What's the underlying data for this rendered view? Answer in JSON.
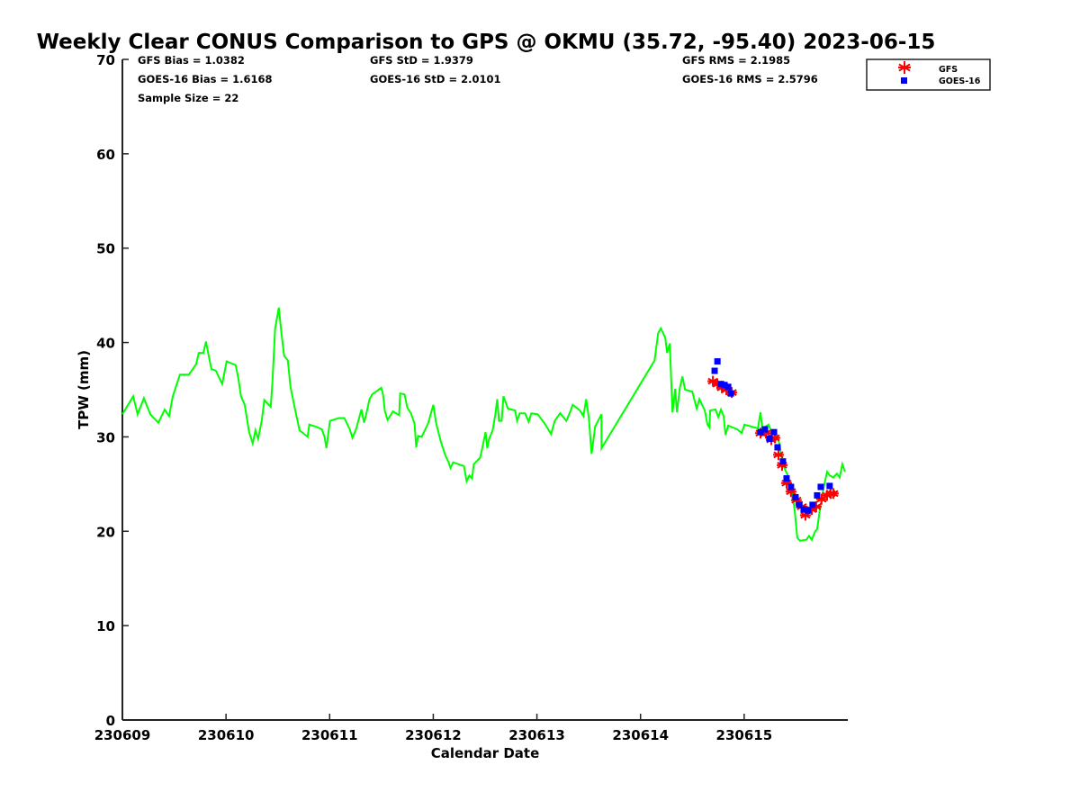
{
  "chart_data": {
    "type": "line",
    "title": "Weekly Clear CONUS Comparison to GPS @ OKMU (35.72, -95.40) 2023-06-15",
    "xlabel": "Calendar Date",
    "ylabel": "TPW (mm)",
    "xlim": [
      0,
      7
    ],
    "ylim": [
      0,
      70
    ],
    "x_unit": "days since 230609",
    "xticks": [
      0,
      1,
      2,
      3,
      4,
      5,
      6
    ],
    "xtick_labels": [
      "230609",
      "230610",
      "230611",
      "230612",
      "230613",
      "230614",
      "230615"
    ],
    "yticks": [
      0,
      10,
      20,
      30,
      40,
      50,
      60,
      70
    ],
    "ytick_labels": [
      "0",
      "10",
      "20",
      "30",
      "40",
      "50",
      "60",
      "70"
    ],
    "grid": false,
    "legend_position": "top-right",
    "stats": [
      "GFS Bias = 1.0382",
      "GFS StD = 1.9379",
      "GFS RMS = 2.1985",
      "GOES-16 Bias = 1.6168",
      "GOES-16 StD = 2.0101",
      "GOES-16 RMS = 2.5796",
      "Sample Size = 22"
    ],
    "series": [
      {
        "name": "GPS",
        "color": "#00ff00",
        "style": "line",
        "points": [
          [
            0.0,
            32.4
          ],
          [
            0.104,
            34.3
          ],
          [
            0.147,
            32.4
          ],
          [
            0.208,
            34.1
          ],
          [
            0.269,
            32.4
          ],
          [
            0.347,
            31.5
          ],
          [
            0.408,
            32.9
          ],
          [
            0.451,
            32.2
          ],
          [
            0.486,
            34.3
          ],
          [
            0.555,
            36.6
          ],
          [
            0.642,
            36.6
          ],
          [
            0.711,
            37.7
          ],
          [
            0.737,
            38.9
          ],
          [
            0.781,
            38.9
          ],
          [
            0.807,
            40.1
          ],
          [
            0.833,
            38.6
          ],
          [
            0.859,
            37.2
          ],
          [
            0.902,
            37.0
          ],
          [
            0.963,
            35.6
          ],
          [
            1.006,
            38.0
          ],
          [
            1.093,
            37.6
          ],
          [
            1.119,
            36.2
          ],
          [
            1.145,
            34.3
          ],
          [
            1.18,
            33.4
          ],
          [
            1.223,
            30.5
          ],
          [
            1.258,
            29.3
          ],
          [
            1.284,
            30.7
          ],
          [
            1.31,
            29.8
          ],
          [
            1.344,
            31.7
          ],
          [
            1.37,
            33.9
          ],
          [
            1.431,
            33.2
          ],
          [
            1.448,
            35.8
          ],
          [
            1.474,
            41.5
          ],
          [
            1.509,
            43.7
          ],
          [
            1.535,
            41.0
          ],
          [
            1.561,
            38.6
          ],
          [
            1.596,
            38.1
          ],
          [
            1.622,
            35.3
          ],
          [
            1.657,
            33.4
          ],
          [
            1.709,
            30.7
          ],
          [
            1.787,
            30.0
          ],
          [
            1.804,
            31.3
          ],
          [
            1.865,
            31.1
          ],
          [
            1.925,
            30.8
          ],
          [
            1.951,
            30.0
          ],
          [
            1.969,
            28.8
          ],
          [
            2.003,
            31.7
          ],
          [
            2.09,
            32.0
          ],
          [
            2.142,
            32.0
          ],
          [
            2.194,
            30.8
          ],
          [
            2.22,
            29.9
          ],
          [
            2.255,
            30.8
          ],
          [
            2.307,
            32.9
          ],
          [
            2.333,
            31.5
          ],
          [
            2.359,
            32.7
          ],
          [
            2.385,
            34.0
          ],
          [
            2.411,
            34.5
          ],
          [
            2.498,
            35.2
          ],
          [
            2.515,
            34.5
          ],
          [
            2.533,
            32.7
          ],
          [
            2.559,
            31.8
          ],
          [
            2.611,
            32.7
          ],
          [
            2.671,
            32.3
          ],
          [
            2.68,
            34.6
          ],
          [
            2.723,
            34.5
          ],
          [
            2.749,
            33.1
          ],
          [
            2.784,
            32.5
          ],
          [
            2.819,
            31.4
          ],
          [
            2.836,
            28.9
          ],
          [
            2.853,
            30.1
          ],
          [
            2.888,
            30.0
          ],
          [
            2.949,
            31.4
          ],
          [
            3.001,
            33.4
          ],
          [
            3.027,
            31.5
          ],
          [
            3.07,
            29.6
          ],
          [
            3.114,
            28.1
          ],
          [
            3.148,
            27.3
          ],
          [
            3.166,
            26.7
          ],
          [
            3.192,
            27.3
          ],
          [
            3.296,
            26.9
          ],
          [
            3.322,
            25.3
          ],
          [
            3.348,
            25.9
          ],
          [
            3.374,
            25.6
          ],
          [
            3.391,
            27.1
          ],
          [
            3.452,
            27.8
          ],
          [
            3.478,
            29.1
          ],
          [
            3.504,
            30.5
          ],
          [
            3.521,
            28.8
          ],
          [
            3.539,
            29.8
          ],
          [
            3.573,
            30.7
          ],
          [
            3.599,
            32.4
          ],
          [
            3.617,
            34.0
          ],
          [
            3.634,
            31.7
          ],
          [
            3.66,
            31.7
          ],
          [
            3.677,
            34.3
          ],
          [
            3.721,
            33.0
          ],
          [
            3.79,
            32.8
          ],
          [
            3.808,
            31.7
          ],
          [
            3.834,
            32.5
          ],
          [
            3.886,
            32.5
          ],
          [
            3.92,
            31.6
          ],
          [
            3.946,
            32.5
          ],
          [
            4.007,
            32.4
          ],
          [
            4.076,
            31.4
          ],
          [
            4.137,
            30.3
          ],
          [
            4.172,
            31.7
          ],
          [
            4.224,
            32.5
          ],
          [
            4.284,
            31.7
          ],
          [
            4.319,
            32.6
          ],
          [
            4.345,
            33.4
          ],
          [
            4.415,
            32.8
          ],
          [
            4.449,
            32.2
          ],
          [
            4.475,
            34.0
          ],
          [
            4.501,
            32.0
          ],
          [
            4.527,
            28.2
          ],
          [
            4.545,
            29.6
          ],
          [
            4.562,
            31.1
          ],
          [
            4.623,
            32.4
          ],
          [
            4.624,
            28.8
          ],
          [
            5.135,
            38.1
          ],
          [
            5.17,
            41.0
          ],
          [
            5.196,
            41.5
          ],
          [
            5.239,
            40.5
          ],
          [
            5.256,
            38.9
          ],
          [
            5.282,
            39.9
          ],
          [
            5.308,
            32.6
          ],
          [
            5.334,
            35.1
          ],
          [
            5.352,
            32.6
          ],
          [
            5.378,
            35.1
          ],
          [
            5.404,
            36.4
          ],
          [
            5.43,
            35.0
          ],
          [
            5.499,
            34.8
          ],
          [
            5.542,
            33.0
          ],
          [
            5.568,
            34.0
          ],
          [
            5.62,
            32.8
          ],
          [
            5.646,
            31.3
          ],
          [
            5.664,
            31.0
          ],
          [
            5.672,
            32.8
          ],
          [
            5.724,
            32.9
          ],
          [
            5.75,
            32.1
          ],
          [
            5.776,
            32.9
          ],
          [
            5.802,
            32.2
          ],
          [
            5.82,
            30.2
          ],
          [
            5.846,
            31.2
          ],
          [
            5.932,
            30.8
          ],
          [
            5.976,
            30.4
          ],
          [
            6.002,
            31.3
          ],
          [
            6.132,
            30.9
          ],
          [
            6.158,
            32.6
          ],
          [
            6.175,
            30.9
          ],
          [
            6.236,
            31.3
          ],
          [
            6.271,
            30.3
          ],
          [
            6.305,
            30.5
          ],
          [
            6.34,
            29.3
          ],
          [
            6.357,
            28.1
          ],
          [
            6.383,
            26.8
          ],
          [
            6.418,
            26.0
          ],
          [
            6.453,
            24.8
          ],
          [
            6.487,
            22.3
          ],
          [
            6.513,
            19.3
          ],
          [
            6.539,
            19.0
          ],
          [
            6.6,
            19.1
          ],
          [
            6.626,
            19.5
          ],
          [
            6.652,
            19.1
          ],
          [
            6.686,
            20.0
          ],
          [
            6.704,
            20.2
          ],
          [
            6.739,
            22.9
          ],
          [
            6.765,
            24.5
          ],
          [
            6.8,
            26.3
          ],
          [
            6.826,
            25.9
          ],
          [
            6.86,
            25.7
          ],
          [
            6.895,
            26.1
          ],
          [
            6.921,
            25.7
          ],
          [
            6.947,
            27.1
          ],
          [
            6.973,
            26.3
          ]
        ]
      },
      {
        "name": "GFS",
        "color": "#ff0000",
        "style": "asterisk",
        "points": [
          [
            5.698,
            35.9
          ],
          [
            5.742,
            35.6
          ],
          [
            5.785,
            35.2
          ],
          [
            5.828,
            35.0
          ],
          [
            5.88,
            34.7
          ],
          [
            6.158,
            30.4
          ],
          [
            6.21,
            30.4
          ],
          [
            6.262,
            29.7
          ],
          [
            6.296,
            29.9
          ],
          [
            6.331,
            28.1
          ],
          [
            6.366,
            27.0
          ],
          [
            6.409,
            25.1
          ],
          [
            6.452,
            24.2
          ],
          [
            6.504,
            23.3
          ],
          [
            6.556,
            22.6
          ],
          [
            6.591,
            21.7
          ],
          [
            6.652,
            22.3
          ],
          [
            6.695,
            22.6
          ],
          [
            6.747,
            23.4
          ],
          [
            6.8,
            23.8
          ],
          [
            6.834,
            24.0
          ],
          [
            6.86,
            24.0
          ]
        ]
      },
      {
        "name": "GOES-16",
        "color": "#0000ff",
        "style": "square",
        "points": [
          [
            5.715,
            37.0
          ],
          [
            5.742,
            38.0
          ],
          [
            5.777,
            35.6
          ],
          [
            5.811,
            35.5
          ],
          [
            5.846,
            35.3
          ],
          [
            5.872,
            34.6
          ],
          [
            6.158,
            30.5
          ],
          [
            6.201,
            30.8
          ],
          [
            6.245,
            29.8
          ],
          [
            6.288,
            30.5
          ],
          [
            6.322,
            28.9
          ],
          [
            6.374,
            27.4
          ],
          [
            6.409,
            25.6
          ],
          [
            6.452,
            24.7
          ],
          [
            6.496,
            23.6
          ],
          [
            6.53,
            22.8
          ],
          [
            6.574,
            22.3
          ],
          [
            6.617,
            22.2
          ],
          [
            6.66,
            22.8
          ],
          [
            6.704,
            23.8
          ],
          [
            6.739,
            24.7
          ],
          [
            6.825,
            24.8
          ]
        ]
      }
    ]
  }
}
